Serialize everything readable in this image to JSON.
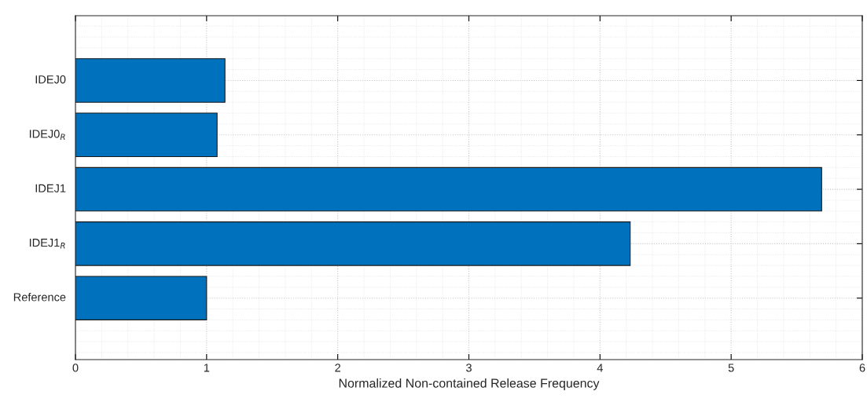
{
  "chart_data": {
    "type": "bar",
    "orientation": "horizontal",
    "categories": [
      "IDEJ0",
      "IDEJ0$_{R}$",
      "IDEJ1",
      "IDEJ1$_{R}$",
      "Reference"
    ],
    "values": [
      1.14,
      1.08,
      5.69,
      4.23,
      1.0
    ],
    "color": "#0072bd",
    "xlabel": "Normalized Non-contained Release Frequency",
    "xlim": [
      0,
      6
    ],
    "xticks": [
      0,
      1,
      2,
      3,
      4,
      5,
      6
    ],
    "grid": true
  }
}
